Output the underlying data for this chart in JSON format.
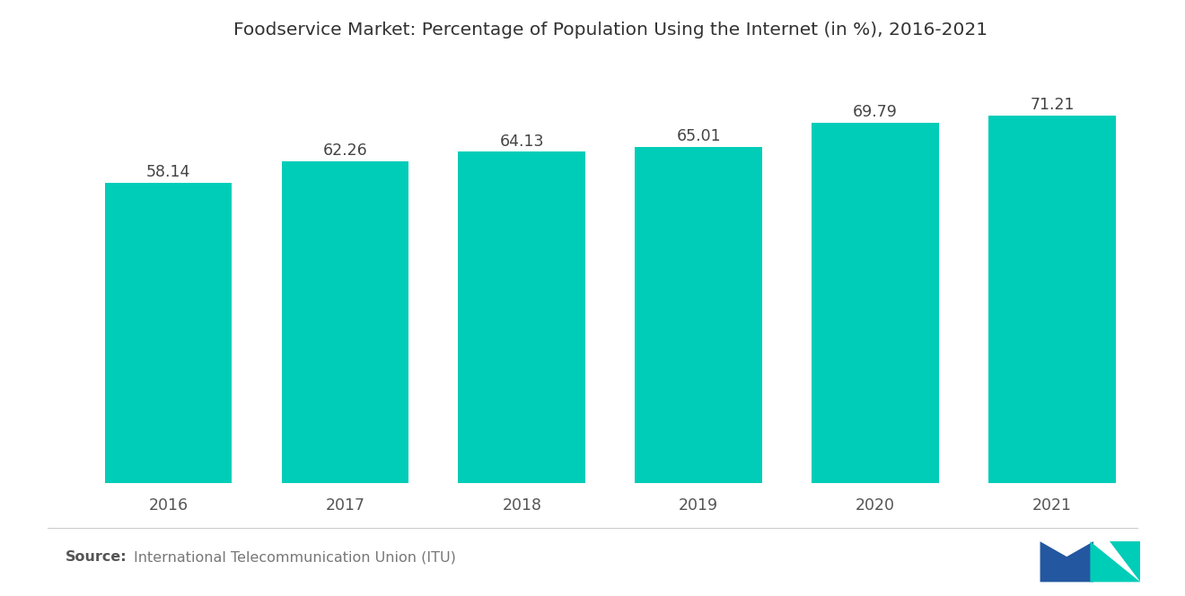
{
  "title": "Foodservice Market: Percentage of Population Using the Internet (in %), 2016-2021",
  "categories": [
    "2016",
    "2017",
    "2018",
    "2019",
    "2020",
    "2021"
  ],
  "values": [
    58.14,
    62.26,
    64.13,
    65.01,
    69.79,
    71.21
  ],
  "bar_color": "#00CDB8",
  "background_color": "#ffffff",
  "source_bold": "Source:",
  "source_text": "International Telecommunication Union (ITU)",
  "title_fontsize": 14.5,
  "label_fontsize": 12.5,
  "tick_fontsize": 12.5,
  "source_fontsize": 11.5,
  "ylim": [
    0,
    82
  ],
  "bar_width": 0.72
}
